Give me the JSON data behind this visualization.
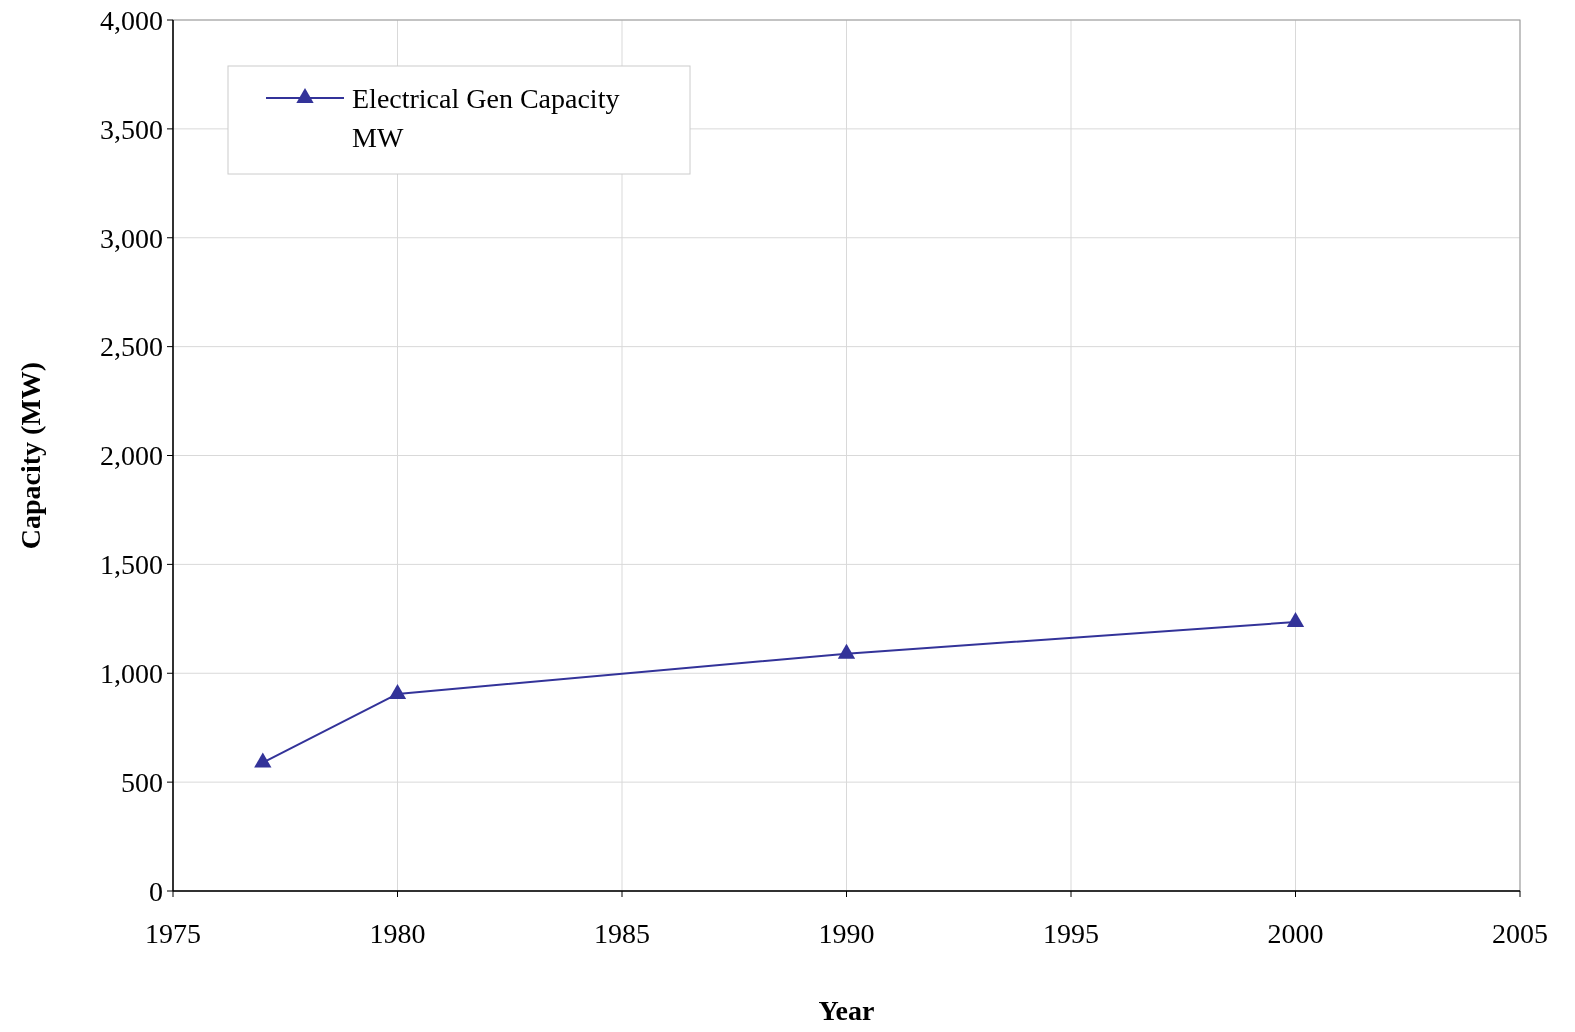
{
  "chart_data": {
    "type": "line",
    "xlabel": "Year",
    "ylabel": "Capacity (MW)",
    "x": [
      1977,
      1980,
      1990,
      2000
    ],
    "series": [
      {
        "name": "Electrical Gen Capacity MW",
        "color": "#333399",
        "values": [
          590,
          905,
          1090,
          1235
        ]
      }
    ],
    "xlim": [
      1975,
      2005
    ],
    "xticks": [
      1975,
      1980,
      1985,
      1990,
      1995,
      2000,
      2005
    ],
    "ylim": [
      0,
      4000
    ],
    "yticks": [
      {
        "value": 0,
        "label": "0"
      },
      {
        "value": 500,
        "label": "500"
      },
      {
        "value": 1000,
        "label": "1,000"
      },
      {
        "value": 1500,
        "label": "1,500"
      },
      {
        "value": 2000,
        "label": "2,000"
      },
      {
        "value": 2500,
        "label": "2,500"
      },
      {
        "value": 3000,
        "label": "3,000"
      },
      {
        "value": 3500,
        "label": "3,500"
      },
      {
        "value": 4000,
        "label": "4,000"
      }
    ],
    "grid": true,
    "legend": "top left",
    "marker": "triangle",
    "line_style": "solid"
  }
}
